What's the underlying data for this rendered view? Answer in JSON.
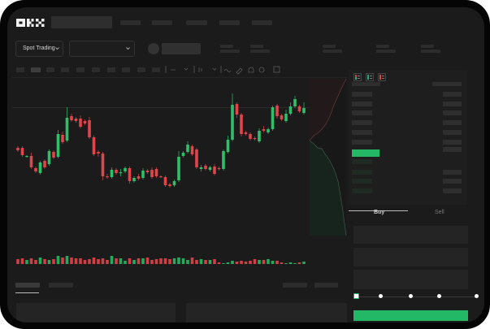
{
  "brand": {
    "logo_text": "OKX"
  },
  "toolbar": {
    "market_selector_label": "Spot Trading",
    "chevron": "chevron-down-icon",
    "pair_dropdown_chevron": "chevron-down-icon"
  },
  "chart_toolbar_icons": [
    "candle-type-icon",
    "chevron-down-icon",
    "indicator-icon",
    "chevron-down-icon",
    "line-tool-icon",
    "ruler-icon",
    "camera-icon",
    "settings-icon",
    "fullscreen-icon"
  ],
  "orderbook": {
    "view_icons": [
      "orderbook-both-icon",
      "orderbook-buy-icon",
      "orderbook-sell-icon"
    ]
  },
  "trade_panel": {
    "tabs": [
      "Buy",
      "Sell"
    ],
    "active_tab": "Buy",
    "slider_percent": 0,
    "slider_stops": 5
  },
  "colors": {
    "up": "#2fbf6a",
    "down": "#e0454b",
    "accent": "#22b865",
    "background": "#1b1b1b"
  },
  "chart_data": {
    "type": "candlestick",
    "candles": [
      [
        68,
        70,
        63,
        65
      ],
      [
        68,
        70,
        57,
        59
      ],
      [
        57,
        59,
        56,
        58
      ],
      [
        58,
        62,
        42,
        44
      ],
      [
        43,
        45,
        37,
        39
      ],
      [
        37,
        52,
        35,
        50
      ],
      [
        52,
        54,
        42,
        44
      ],
      [
        48,
        66,
        46,
        64
      ],
      [
        63,
        65,
        54,
        56
      ],
      [
        57,
        90,
        55,
        85
      ],
      [
        84,
        88,
        73,
        75
      ],
      [
        77,
        118,
        75,
        105
      ],
      [
        107,
        110,
        100,
        102
      ],
      [
        104,
        106,
        99,
        101
      ],
      [
        104,
        108,
        92,
        94
      ],
      [
        101,
        103,
        96,
        98
      ],
      [
        102,
        106,
        79,
        81
      ],
      [
        81,
        83,
        58,
        60
      ],
      [
        63,
        65,
        57,
        61
      ],
      [
        61,
        63,
        28,
        33
      ],
      [
        33,
        36,
        30,
        32
      ],
      [
        32,
        44,
        30,
        41
      ],
      [
        41,
        43,
        35,
        37
      ],
      [
        37,
        42,
        33,
        38
      ],
      [
        39,
        45,
        37,
        43
      ],
      [
        43,
        45,
        24,
        27
      ],
      [
        27,
        33,
        25,
        31
      ],
      [
        33,
        36,
        28,
        30
      ],
      [
        31,
        43,
        29,
        40
      ],
      [
        40,
        42,
        36,
        38
      ],
      [
        41,
        44,
        30,
        32
      ],
      [
        42,
        44,
        31,
        33
      ],
      [
        33,
        34,
        31,
        32
      ],
      [
        32,
        34,
        20,
        22
      ],
      [
        23,
        25,
        19,
        21
      ],
      [
        22,
        29,
        20,
        27
      ],
      [
        28,
        64,
        26,
        57
      ],
      [
        58,
        64,
        56,
        62
      ],
      [
        63,
        76,
        61,
        72
      ],
      [
        70,
        72,
        58,
        60
      ],
      [
        66,
        68,
        42,
        44
      ],
      [
        42,
        47,
        39,
        44
      ],
      [
        46,
        48,
        40,
        42
      ],
      [
        41,
        46,
        39,
        44
      ],
      [
        45,
        48,
        34,
        36
      ],
      [
        43,
        45,
        40,
        42
      ],
      [
        42,
        66,
        40,
        64
      ],
      [
        63,
        83,
        61,
        78
      ],
      [
        78,
        135,
        76,
        121
      ],
      [
        122,
        124,
        105,
        109
      ],
      [
        109,
        111,
        82,
        85
      ],
      [
        87,
        89,
        83,
        85
      ],
      [
        85,
        87,
        77,
        79
      ],
      [
        80,
        82,
        77,
        79
      ],
      [
        76,
        92,
        74,
        89
      ],
      [
        91,
        95,
        87,
        89
      ],
      [
        87,
        93,
        85,
        91
      ],
      [
        91,
        120,
        89,
        118
      ],
      [
        120,
        122,
        104,
        107
      ],
      [
        108,
        110,
        101,
        103
      ],
      [
        101,
        115,
        99,
        110
      ],
      [
        110,
        124,
        108,
        119
      ],
      [
        119,
        132,
        117,
        128
      ],
      [
        119,
        121,
        111,
        113
      ],
      [
        111,
        124,
        109,
        117
      ]
    ],
    "volume": [
      6,
      7,
      5,
      7,
      5,
      8,
      6,
      5,
      6,
      10,
      8,
      10,
      8,
      7,
      7,
      5,
      6,
      8,
      6,
      7,
      5,
      10,
      7,
      7,
      4,
      7,
      5,
      7,
      7,
      8,
      5,
      6,
      7,
      7,
      6,
      7,
      8,
      7,
      5,
      8,
      5,
      6,
      5,
      5,
      6,
      2,
      1,
      2,
      4,
      3,
      4,
      3,
      4,
      6,
      5,
      5,
      6,
      4,
      4,
      2,
      1,
      2,
      1,
      2,
      3
    ],
    "depth": {
      "bids": [
        [
          0,
          0
        ],
        [
          1,
          4
        ],
        [
          2,
          9
        ],
        [
          3,
          10
        ],
        [
          4,
          18
        ],
        [
          5,
          25
        ],
        [
          6,
          35
        ],
        [
          7,
          50
        ],
        [
          8,
          80
        ],
        [
          9,
          117
        ]
      ],
      "asks": [
        [
          0,
          0
        ],
        [
          1,
          6
        ],
        [
          2,
          9
        ],
        [
          3,
          14
        ],
        [
          4,
          20
        ],
        [
          5,
          30
        ],
        [
          6,
          44
        ],
        [
          7,
          55
        ],
        [
          8,
          66
        ],
        [
          9,
          76
        ]
      ]
    }
  }
}
